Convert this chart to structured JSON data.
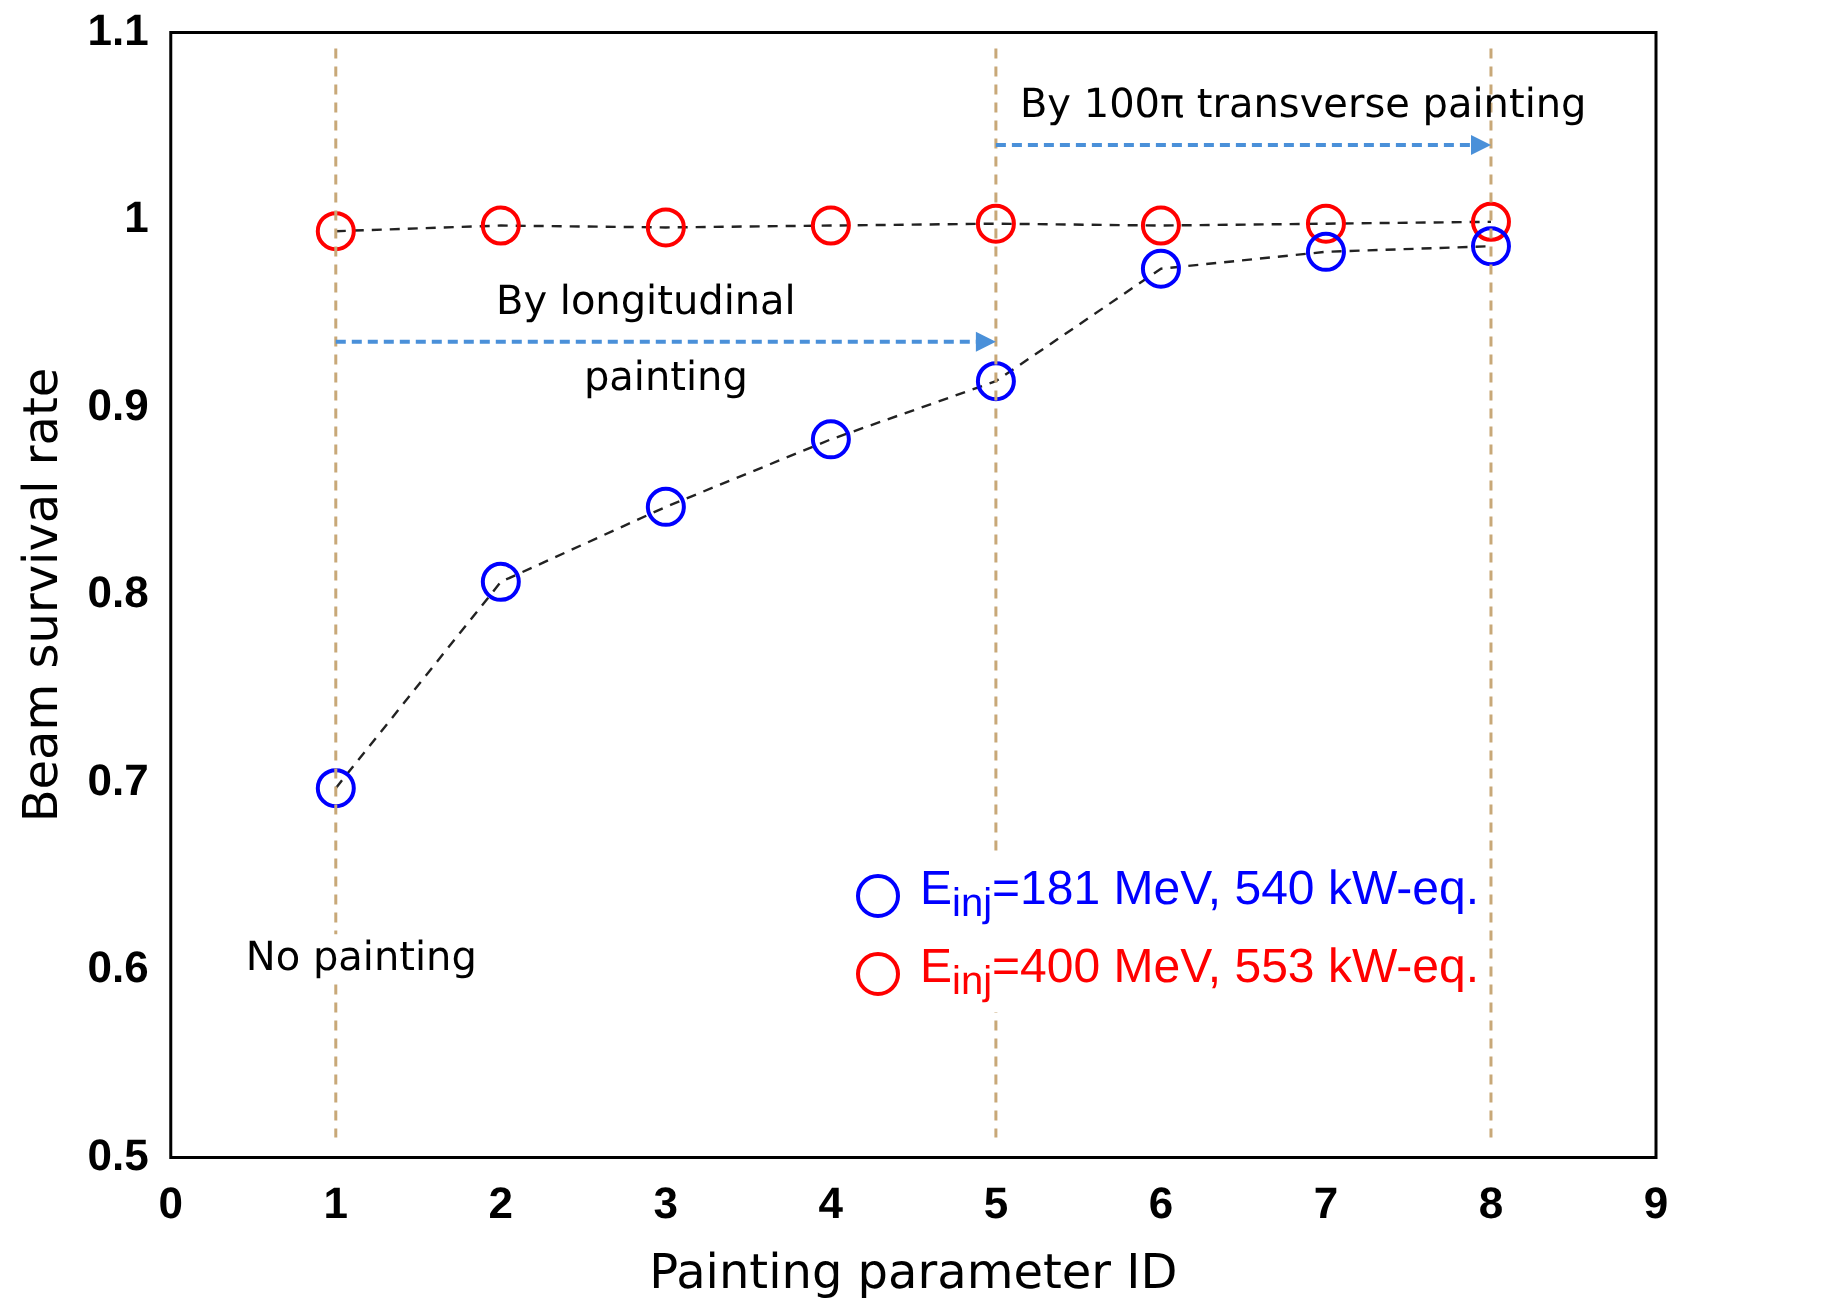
{
  "chart_data": {
    "type": "line",
    "xlabel": "Painting parameter ID",
    "ylabel": "Beam survival rate",
    "xlim": [
      0,
      9
    ],
    "xticks": [
      0,
      1,
      2,
      3,
      4,
      5,
      6,
      7,
      8,
      9
    ],
    "ylim": [
      0.5,
      1.1
    ],
    "yticks": [
      0.5,
      0.6,
      0.7,
      0.8,
      0.9,
      1,
      1.1
    ],
    "x": [
      1,
      2,
      3,
      4,
      5,
      6,
      7,
      8
    ],
    "series": [
      {
        "name": "E$_{inj}$=181 MeV, 540 kW-eq.",
        "color": "#0000ff",
        "values": [
          0.697,
          0.807,
          0.847,
          0.883,
          0.914,
          0.974,
          0.983,
          0.986
        ]
      },
      {
        "name": "E$_{inj}$=400 MeV, 553 kW-eq.",
        "color": "#ff0000",
        "values": [
          0.994,
          0.997,
          0.996,
          0.997,
          0.998,
          0.997,
          0.998,
          0.999
        ]
      }
    ],
    "marker": "circle",
    "line_style": "dashed",
    "grid": false,
    "legend": "bottom right",
    "ref_lines": [
      {
        "axis": "x",
        "value": 1,
        "color": "#c8a878",
        "line_style": "dashed"
      },
      {
        "axis": "x",
        "value": 5,
        "color": "#c8a878",
        "line_style": "dashed"
      },
      {
        "axis": "x",
        "value": 8,
        "color": "#c8a878",
        "line_style": "dashed"
      }
    ],
    "annotations": [
      "No painting",
      "By longitudinal painting",
      "By 100π transverse painting"
    ]
  }
}
